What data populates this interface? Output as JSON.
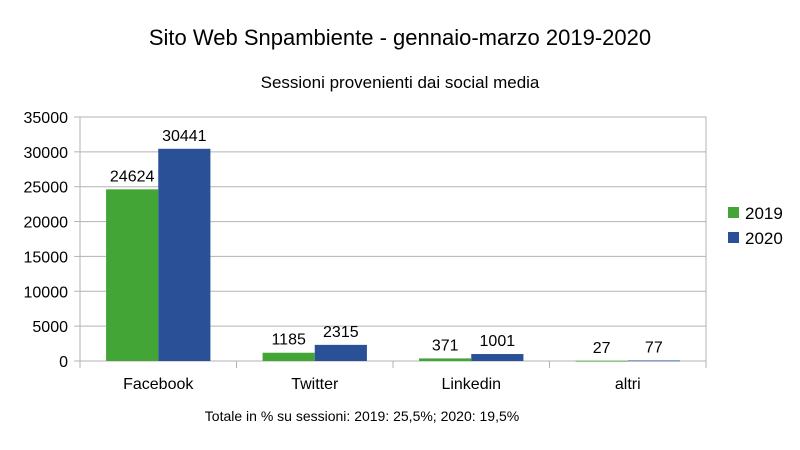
{
  "chart_data": {
    "type": "bar",
    "title": "Sito Web Snpambiente - gennaio-marzo 2019-2020",
    "subtitle": "Sessioni provenienti dai social media",
    "footnote": "Totale in % su sessioni: 2019: 25,5%; 2020: 19,5%",
    "categories": [
      "Facebook",
      "Twitter",
      "Linkedin",
      "altri"
    ],
    "series": [
      {
        "name": "2019",
        "color": "#43a535",
        "values": [
          24624,
          1185,
          371,
          27
        ]
      },
      {
        "name": "2020",
        "color": "#2a5198",
        "values": [
          30441,
          2315,
          1001,
          77
        ]
      }
    ],
    "ylim": [
      0,
      35000
    ],
    "yticks": [
      0,
      5000,
      10000,
      15000,
      20000,
      25000,
      30000,
      35000
    ],
    "grid": true,
    "legend_position": "right",
    "data_labels": true
  }
}
